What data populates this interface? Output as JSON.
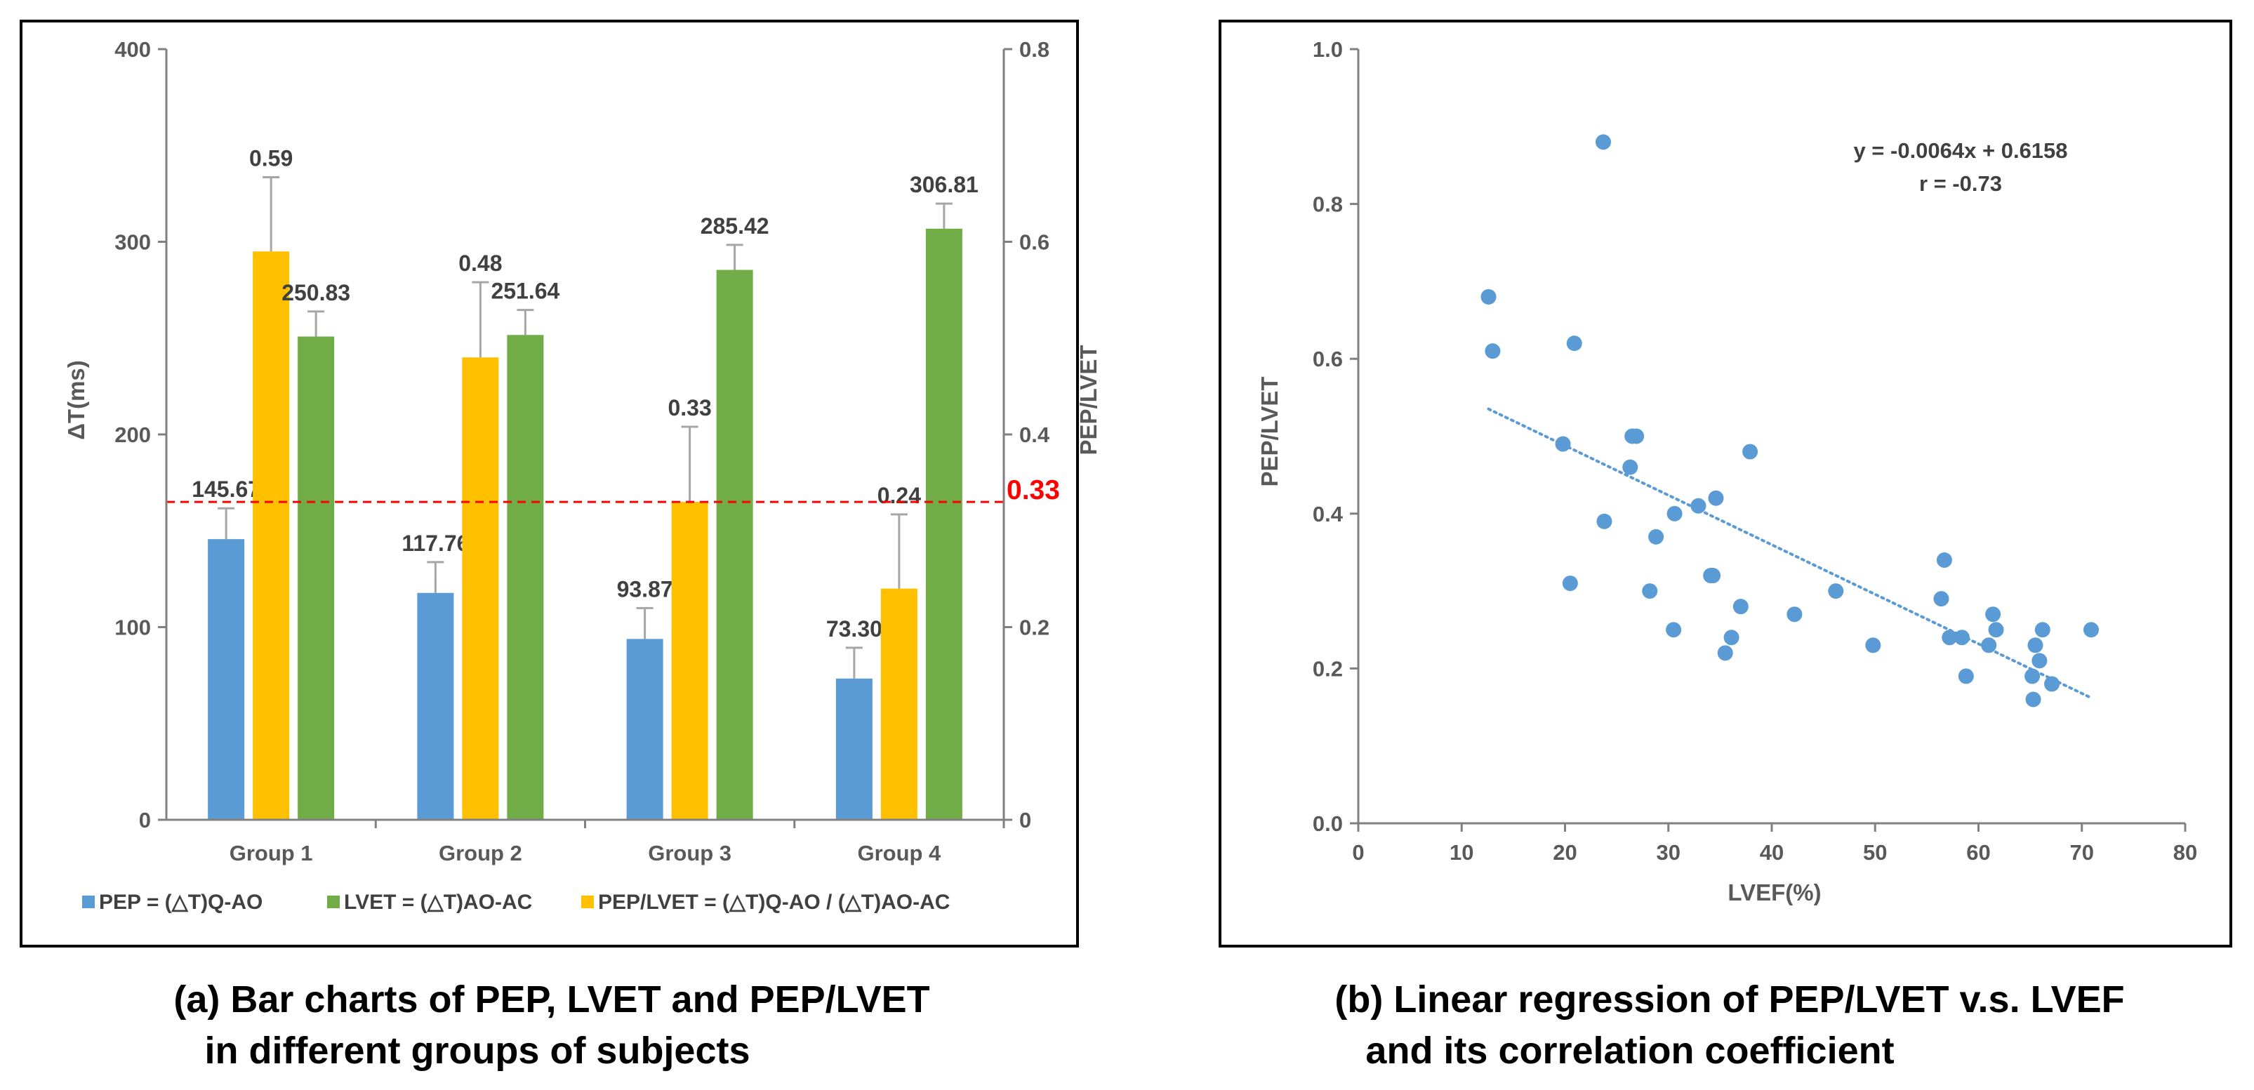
{
  "colors": {
    "pep": "#5b9bd5",
    "pep_lvet": "#ffc000",
    "lvet": "#70ad47",
    "threshold": "#ff0000",
    "trend": "#5b9bd5",
    "error_bar": "#a6a6a6"
  },
  "chart_data": [
    {
      "type": "bar",
      "title": "",
      "caption_lines": [
        "(a) Bar charts of PEP, LVET and PEP/LVET",
        "in different groups of subjects"
      ],
      "categories": [
        "Group 1",
        "Group 2",
        "Group 3",
        "Group 4"
      ],
      "ylabel": "ΔT(ms)",
      "y2label": "PEP/LVET",
      "ylim": [
        0,
        400
      ],
      "y2lim": [
        0,
        0.8
      ],
      "yticks": [
        "0",
        "100",
        "200",
        "300",
        "400"
      ],
      "y2ticks": [
        "0",
        "0.2",
        "0.4",
        "0.6",
        "0.8"
      ],
      "series": [
        {
          "name": "PEP = (△T)Q-AO",
          "axis": "left",
          "values": [
            145.67,
            117.76,
            93.87,
            73.3
          ],
          "labels": [
            "145.67",
            "117.76",
            "93.87",
            "73.30"
          ],
          "errors": [
            16,
            16,
            16,
            16
          ]
        },
        {
          "name": "PEP/LVET = (△T)Q-AO / (△T)AO-AC",
          "axis": "right",
          "values": [
            0.59,
            0.48,
            0.33,
            0.24
          ],
          "labels": [
            "0.59",
            "0.48",
            "0.33",
            "0.24"
          ],
          "errors": [
            0.077,
            0.078,
            0.078,
            0.077
          ]
        },
        {
          "name": "LVET = (△T)AO-AC",
          "axis": "left",
          "values": [
            250.83,
            251.64,
            285.42,
            306.81
          ],
          "labels": [
            "250.83",
            "251.64",
            "285.42",
            "306.81"
          ],
          "errors": [
            13,
            13,
            13,
            13
          ]
        }
      ],
      "legend_order": [
        0,
        2,
        1
      ],
      "threshold": {
        "value": 0.33,
        "label": "0.33",
        "axis": "right"
      }
    },
    {
      "type": "scatter",
      "title": "",
      "caption_lines": [
        "(b) Linear regression of PEP/LVET v.s. LVEF",
        "and its correlation coefficient"
      ],
      "xlabel": "LVEF(%)",
      "ylabel": "PEP/LVET",
      "xlim": [
        0,
        80
      ],
      "ylim": [
        0.0,
        1.0
      ],
      "xticks": [
        "0",
        "10",
        "20",
        "30",
        "40",
        "50",
        "60",
        "70",
        "80"
      ],
      "yticks": [
        "0.0",
        "0.2",
        "0.4",
        "0.6",
        "0.8",
        "1.0"
      ],
      "points": [
        [
          12.6,
          0.68
        ],
        [
          13.0,
          0.61
        ],
        [
          19.8,
          0.49
        ],
        [
          20.5,
          0.31
        ],
        [
          20.9,
          0.62
        ],
        [
          23.7,
          0.88
        ],
        [
          23.8,
          0.39
        ],
        [
          26.3,
          0.46
        ],
        [
          26.5,
          0.5
        ],
        [
          26.9,
          0.5
        ],
        [
          28.2,
          0.3
        ],
        [
          28.8,
          0.37
        ],
        [
          30.5,
          0.25
        ],
        [
          30.6,
          0.4
        ],
        [
          32.9,
          0.41
        ],
        [
          34.1,
          0.32
        ],
        [
          34.3,
          0.32
        ],
        [
          34.6,
          0.42
        ],
        [
          35.5,
          0.22
        ],
        [
          36.1,
          0.24
        ],
        [
          37.0,
          0.28
        ],
        [
          37.9,
          0.48
        ],
        [
          42.2,
          0.27
        ],
        [
          46.2,
          0.3
        ],
        [
          49.8,
          0.23
        ],
        [
          56.4,
          0.29
        ],
        [
          56.7,
          0.34
        ],
        [
          57.2,
          0.24
        ],
        [
          58.4,
          0.24
        ],
        [
          58.8,
          0.19
        ],
        [
          61.0,
          0.23
        ],
        [
          61.4,
          0.27
        ],
        [
          61.7,
          0.25
        ],
        [
          65.2,
          0.19
        ],
        [
          65.3,
          0.16
        ],
        [
          65.5,
          0.23
        ],
        [
          65.9,
          0.21
        ],
        [
          66.2,
          0.25
        ],
        [
          67.1,
          0.18
        ],
        [
          70.9,
          0.25
        ]
      ],
      "trendline": {
        "slope": -0.0064,
        "intercept": 0.6158,
        "x_range": [
          12.6,
          70.9
        ]
      },
      "equation": "y = -0.0064x + 0.6158",
      "r_text": "r = -0.73"
    }
  ]
}
